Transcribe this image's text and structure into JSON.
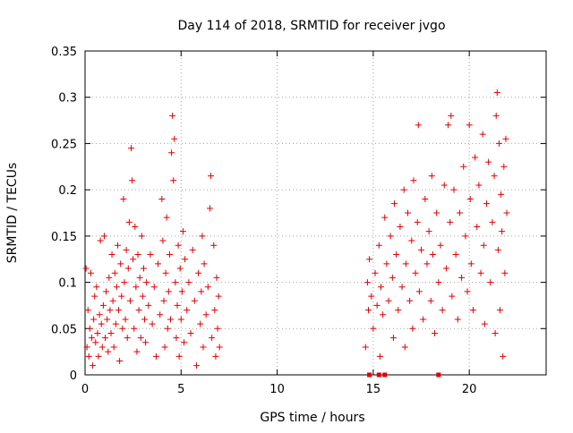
{
  "chart_data": {
    "type": "scatter",
    "title": "Day 114 of 2018, SRMTID for receiver jvgo",
    "xlabel": "GPS time / hours",
    "ylabel": "SRMTID / TECUs",
    "xlim": [
      0,
      24
    ],
    "ylim": [
      0,
      0.35
    ],
    "grid": true,
    "x_ticks": [
      0,
      5,
      10,
      15,
      20
    ],
    "x_tick_labels": [
      "0",
      "5",
      "10",
      "15",
      "20"
    ],
    "y_ticks": [
      0,
      0.05,
      0.1,
      0.15,
      0.2,
      0.25,
      0.3,
      0.35
    ],
    "y_tick_labels": [
      "0",
      "0.05",
      "0.1",
      "0.15",
      "0.2",
      "0.25",
      "0.3",
      "0.35"
    ],
    "marker_color": "#e00000",
    "series": [
      {
        "marker": "plus",
        "points": [
          [
            0.05,
            0.115
          ],
          [
            0.1,
            0.03
          ],
          [
            0.15,
            0.07
          ],
          [
            0.2,
            0.02
          ],
          [
            0.25,
            0.05
          ],
          [
            0.3,
            0.11
          ],
          [
            0.35,
            0.04
          ],
          [
            0.4,
            0.01
          ],
          [
            0.45,
            0.06
          ],
          [
            0.5,
            0.085
          ],
          [
            0.55,
            0.035
          ],
          [
            0.6,
            0.095
          ],
          [
            0.65,
            0.045
          ],
          [
            0.7,
            0.02
          ],
          [
            0.75,
            0.065
          ],
          [
            0.8,
            0.145
          ],
          [
            0.85,
            0.055
          ],
          [
            0.9,
            0.03
          ],
          [
            0.95,
            0.075
          ],
          [
            1.0,
            0.15
          ],
          [
            1.05,
            0.04
          ],
          [
            1.1,
            0.09
          ],
          [
            1.15,
            0.06
          ],
          [
            1.2,
            0.025
          ],
          [
            1.25,
            0.105
          ],
          [
            1.3,
            0.07
          ],
          [
            1.35,
            0.045
          ],
          [
            1.4,
            0.13
          ],
          [
            1.45,
            0.08
          ],
          [
            1.5,
            0.03
          ],
          [
            1.55,
            0.11
          ],
          [
            1.6,
            0.055
          ],
          [
            1.65,
            0.095
          ],
          [
            1.7,
            0.14
          ],
          [
            1.75,
            0.07
          ],
          [
            1.8,
            0.015
          ],
          [
            1.85,
            0.12
          ],
          [
            1.9,
            0.085
          ],
          [
            1.95,
            0.05
          ],
          [
            2.0,
            0.19
          ],
          [
            2.05,
            0.1
          ],
          [
            2.1,
            0.06
          ],
          [
            2.15,
            0.135
          ],
          [
            2.2,
            0.04
          ],
          [
            2.25,
            0.115
          ],
          [
            2.3,
            0.165
          ],
          [
            2.35,
            0.08
          ],
          [
            2.4,
            0.245
          ],
          [
            2.45,
            0.21
          ],
          [
            2.5,
            0.125
          ],
          [
            2.55,
            0.05
          ],
          [
            2.6,
            0.16
          ],
          [
            2.65,
            0.095
          ],
          [
            2.7,
            0.025
          ],
          [
            2.75,
            0.13
          ],
          [
            2.8,
            0.07
          ],
          [
            2.85,
            0.105
          ],
          [
            2.9,
            0.04
          ],
          [
            2.95,
            0.15
          ],
          [
            3.0,
            0.085
          ],
          [
            3.05,
            0.115
          ],
          [
            3.1,
            0.06
          ],
          [
            3.15,
            0.035
          ],
          [
            3.2,
            0.1
          ],
          [
            3.3,
            0.075
          ],
          [
            3.4,
            0.13
          ],
          [
            3.5,
            0.055
          ],
          [
            3.6,
            0.095
          ],
          [
            3.7,
            0.02
          ],
          [
            3.8,
            0.12
          ],
          [
            3.9,
            0.065
          ],
          [
            4.0,
            0.19
          ],
          [
            4.05,
            0.145
          ],
          [
            4.1,
            0.08
          ],
          [
            4.15,
            0.03
          ],
          [
            4.2,
            0.11
          ],
          [
            4.25,
            0.17
          ],
          [
            4.3,
            0.05
          ],
          [
            4.35,
            0.09
          ],
          [
            4.4,
            0.13
          ],
          [
            4.45,
            0.06
          ],
          [
            4.5,
            0.24
          ],
          [
            4.55,
            0.28
          ],
          [
            4.6,
            0.21
          ],
          [
            4.65,
            0.255
          ],
          [
            4.7,
            0.1
          ],
          [
            4.75,
            0.04
          ],
          [
            4.8,
            0.075
          ],
          [
            4.85,
            0.14
          ],
          [
            4.9,
            0.02
          ],
          [
            4.95,
            0.115
          ],
          [
            5.0,
            0.06
          ],
          [
            5.05,
            0.09
          ],
          [
            5.1,
            0.155
          ],
          [
            5.15,
            0.035
          ],
          [
            5.2,
            0.125
          ],
          [
            5.3,
            0.07
          ],
          [
            5.4,
            0.1
          ],
          [
            5.5,
            0.045
          ],
          [
            5.6,
            0.135
          ],
          [
            5.7,
            0.08
          ],
          [
            5.8,
            0.01
          ],
          [
            5.9,
            0.11
          ],
          [
            6.0,
            0.055
          ],
          [
            6.05,
            0.09
          ],
          [
            6.1,
            0.15
          ],
          [
            6.15,
            0.03
          ],
          [
            6.2,
            0.12
          ],
          [
            6.3,
            0.065
          ],
          [
            6.4,
            0.095
          ],
          [
            6.5,
            0.18
          ],
          [
            6.55,
            0.215
          ],
          [
            6.6,
            0.04
          ],
          [
            6.7,
            0.14
          ],
          [
            6.75,
            0.07
          ],
          [
            6.8,
            0.02
          ],
          [
            6.85,
            0.105
          ],
          [
            6.9,
            0.05
          ],
          [
            6.95,
            0.085
          ],
          [
            7.0,
            0.03
          ],
          [
            14.6,
            0.03
          ],
          [
            14.7,
            0.1
          ],
          [
            14.75,
            0.07
          ],
          [
            14.8,
            0.125
          ],
          [
            14.9,
            0.085
          ],
          [
            15.0,
            0.05
          ],
          [
            15.1,
            0.11
          ],
          [
            15.2,
            0.075
          ],
          [
            15.3,
            0.14
          ],
          [
            15.35,
            0.02
          ],
          [
            15.4,
            0.095
          ],
          [
            15.5,
            0.065
          ],
          [
            15.6,
            0.17
          ],
          [
            15.7,
            0.12
          ],
          [
            15.8,
            0.08
          ],
          [
            15.9,
            0.15
          ],
          [
            16.0,
            0.105
          ],
          [
            16.05,
            0.04
          ],
          [
            16.1,
            0.185
          ],
          [
            16.2,
            0.13
          ],
          [
            16.3,
            0.07
          ],
          [
            16.4,
            0.16
          ],
          [
            16.5,
            0.095
          ],
          [
            16.6,
            0.2
          ],
          [
            16.65,
            0.03
          ],
          [
            16.7,
            0.12
          ],
          [
            16.8,
            0.175
          ],
          [
            16.9,
            0.08
          ],
          [
            17.0,
            0.145
          ],
          [
            17.05,
            0.05
          ],
          [
            17.1,
            0.21
          ],
          [
            17.2,
            0.11
          ],
          [
            17.3,
            0.165
          ],
          [
            17.35,
            0.27
          ],
          [
            17.4,
            0.09
          ],
          [
            17.5,
            0.135
          ],
          [
            17.6,
            0.06
          ],
          [
            17.7,
            0.19
          ],
          [
            17.8,
            0.12
          ],
          [
            17.9,
            0.155
          ],
          [
            18.0,
            0.08
          ],
          [
            18.05,
            0.215
          ],
          [
            18.1,
            0.13
          ],
          [
            18.2,
            0.045
          ],
          [
            18.3,
            0.175
          ],
          [
            18.4,
            0.1
          ],
          [
            18.5,
            0.14
          ],
          [
            18.6,
            0.07
          ],
          [
            18.7,
            0.205
          ],
          [
            18.8,
            0.115
          ],
          [
            18.9,
            0.27
          ],
          [
            19.0,
            0.165
          ],
          [
            19.05,
            0.28
          ],
          [
            19.1,
            0.085
          ],
          [
            19.2,
            0.2
          ],
          [
            19.3,
            0.13
          ],
          [
            19.4,
            0.06
          ],
          [
            19.5,
            0.175
          ],
          [
            19.6,
            0.105
          ],
          [
            19.7,
            0.225
          ],
          [
            19.8,
            0.15
          ],
          [
            19.9,
            0.09
          ],
          [
            20.0,
            0.27
          ],
          [
            20.05,
            0.19
          ],
          [
            20.1,
            0.12
          ],
          [
            20.2,
            0.07
          ],
          [
            20.3,
            0.235
          ],
          [
            20.4,
            0.16
          ],
          [
            20.5,
            0.205
          ],
          [
            20.6,
            0.11
          ],
          [
            20.7,
            0.26
          ],
          [
            20.75,
            0.14
          ],
          [
            20.8,
            0.055
          ],
          [
            20.9,
            0.185
          ],
          [
            21.0,
            0.23
          ],
          [
            21.1,
            0.1
          ],
          [
            21.2,
            0.165
          ],
          [
            21.3,
            0.215
          ],
          [
            21.35,
            0.045
          ],
          [
            21.4,
            0.28
          ],
          [
            21.45,
            0.305
          ],
          [
            21.5,
            0.135
          ],
          [
            21.55,
            0.25
          ],
          [
            21.6,
            0.07
          ],
          [
            21.65,
            0.195
          ],
          [
            21.7,
            0.155
          ],
          [
            21.75,
            0.02
          ],
          [
            21.8,
            0.225
          ],
          [
            21.85,
            0.11
          ],
          [
            21.9,
            0.255
          ],
          [
            21.95,
            0.175
          ]
        ]
      },
      {
        "marker": "square",
        "points": [
          [
            14.8,
            0.0
          ],
          [
            15.3,
            0.0
          ],
          [
            15.6,
            0.0
          ],
          [
            18.4,
            0.0
          ]
        ]
      }
    ]
  }
}
